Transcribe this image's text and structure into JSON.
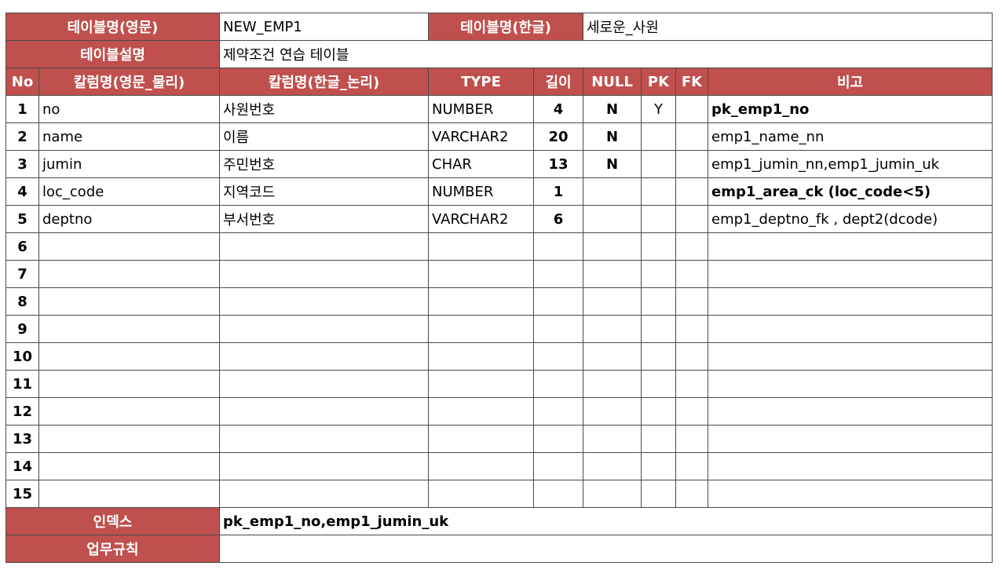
{
  "header": {
    "table_name_en_label": "테이블명(영문)",
    "table_name_en_value": "NEW_EMP1",
    "table_name_ko_label": "테이블명(한글)",
    "table_name_ko_value": "세로운_사원",
    "description_label": "테이블설명",
    "description_value": "제약조건 연습 테이블"
  },
  "columns": {
    "no": "No",
    "physical": "칼럼명(영문_물리)",
    "logical": "칼럼명(한글_논리)",
    "type": "TYPE",
    "length": "길이",
    "null": "NULL",
    "pk": "PK",
    "fk": "FK",
    "note": "비고"
  },
  "rows": [
    {
      "no": "1",
      "physical": "no",
      "logical": "사원번호",
      "type": "NUMBER",
      "length": "4",
      "null": "N",
      "pk": "Y",
      "fk": "",
      "note": "pk_emp1_no"
    },
    {
      "no": "2",
      "physical": "name",
      "logical": "이름",
      "type": "VARCHAR2",
      "length": "20",
      "null": "N",
      "pk": "",
      "fk": "",
      "note": "emp1_name_nn"
    },
    {
      "no": "3",
      "physical": "jumin",
      "logical": "주민번호",
      "type": "CHAR",
      "length": "13",
      "null": "N",
      "pk": "",
      "fk": "",
      "note": "emp1_jumin_nn,emp1_jumin_uk"
    },
    {
      "no": "4",
      "physical": "loc_code",
      "logical": "지역코드",
      "type": "NUMBER",
      "length": "1",
      "null": "",
      "pk": "",
      "fk": "",
      "note": "emp1_area_ck (loc_code<5)"
    },
    {
      "no": "5",
      "physical": "deptno",
      "logical": "부서번호",
      "type": "VARCHAR2",
      "length": "6",
      "null": "",
      "pk": "",
      "fk": "",
      "note": "emp1_deptno_fk , dept2(dcode)"
    },
    {
      "no": "6",
      "physical": "",
      "logical": "",
      "type": "",
      "length": "",
      "null": "",
      "pk": "",
      "fk": "",
      "note": ""
    },
    {
      "no": "7",
      "physical": "",
      "logical": "",
      "type": "",
      "length": "",
      "null": "",
      "pk": "",
      "fk": "",
      "note": ""
    },
    {
      "no": "8",
      "physical": "",
      "logical": "",
      "type": "",
      "length": "",
      "null": "",
      "pk": "",
      "fk": "",
      "note": ""
    },
    {
      "no": "9",
      "physical": "",
      "logical": "",
      "type": "",
      "length": "",
      "null": "",
      "pk": "",
      "fk": "",
      "note": ""
    },
    {
      "no": "10",
      "physical": "",
      "logical": "",
      "type": "",
      "length": "",
      "null": "",
      "pk": "",
      "fk": "",
      "note": ""
    },
    {
      "no": "11",
      "physical": "",
      "logical": "",
      "type": "",
      "length": "",
      "null": "",
      "pk": "",
      "fk": "",
      "note": ""
    },
    {
      "no": "12",
      "physical": "",
      "logical": "",
      "type": "",
      "length": "",
      "null": "",
      "pk": "",
      "fk": "",
      "note": ""
    },
    {
      "no": "13",
      "physical": "",
      "logical": "",
      "type": "",
      "length": "",
      "null": "",
      "pk": "",
      "fk": "",
      "note": ""
    },
    {
      "no": "14",
      "physical": "",
      "logical": "",
      "type": "",
      "length": "",
      "null": "",
      "pk": "",
      "fk": "",
      "note": ""
    },
    {
      "no": "15",
      "physical": "",
      "logical": "",
      "type": "",
      "length": "",
      "null": "",
      "pk": "",
      "fk": "",
      "note": ""
    }
  ],
  "footer": {
    "index_label": "인덱스",
    "index_value": "pk_emp1_no,emp1_jumin_uk",
    "business_rule_label": "업무규칙",
    "business_rule_value": ""
  },
  "colors": {
    "header_bg": "#c0504d",
    "header_text": "#ffffff"
  }
}
